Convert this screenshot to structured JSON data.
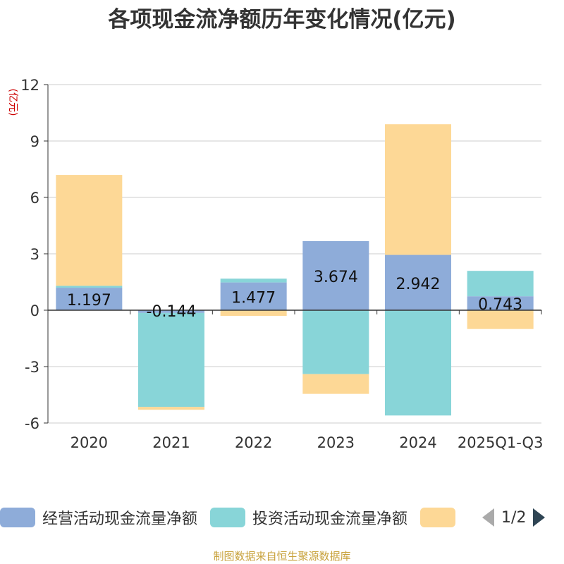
{
  "chart_data": {
    "type": "bar",
    "stacked": true,
    "title": "各项现金流净额历年变化情况(亿元)",
    "ylabel": "(亿元)",
    "categories": [
      "2020",
      "2021",
      "2022",
      "2023",
      "2024",
      "2025Q1-Q3"
    ],
    "ylim": [
      -6,
      12
    ],
    "yticks": [
      12,
      9,
      6,
      3,
      0,
      -3,
      -6
    ],
    "series": [
      {
        "name": "经营活动现金流量净额",
        "color": "#8eacd9",
        "values": [
          1.197,
          -0.144,
          1.477,
          3.674,
          2.942,
          0.743
        ],
        "labels": [
          "1.197",
          "-0.144",
          "1.477",
          "3.674",
          "2.942",
          "0.743"
        ]
      },
      {
        "name": "投资活动现金流量净额",
        "color": "#88d5d8",
        "values": [
          0.1,
          -5.0,
          0.2,
          -3.4,
          -5.6,
          1.35
        ]
      },
      {
        "name": "",
        "color": "#fdd896",
        "values": [
          5.9,
          -0.15,
          -0.3,
          -1.05,
          6.95,
          -1.0
        ]
      }
    ]
  },
  "legend": {
    "items": [
      {
        "label": "经营活动现金流量净额",
        "color": "#8eacd9"
      },
      {
        "label": "投资活动现金流量净额",
        "color": "#88d5d8"
      },
      {
        "label": "",
        "color": "#fdd896"
      }
    ],
    "page": "1/2"
  },
  "source": "制图数据来自恒生聚源数据库"
}
